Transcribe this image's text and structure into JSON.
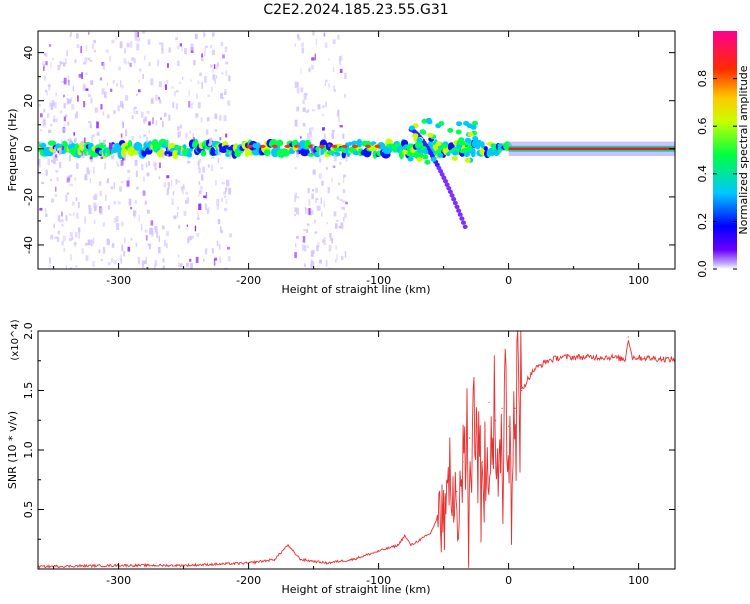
{
  "title": "C2E2.2024.185.23.55.G31",
  "chart_data": [
    {
      "type": "heatmap",
      "xlabel": "Height of straight line (km)",
      "ylabel": "Frequency (Hz)",
      "xlim": [
        -362,
        128
      ],
      "ylim": [
        -50,
        49
      ],
      "x_ticks": [
        -300,
        -200,
        -100,
        0,
        100
      ],
      "y_ticks": [
        -40,
        -20,
        0,
        20,
        40
      ],
      "colorbar": {
        "label": "Normalized spectral amplitude",
        "range": [
          0,
          1
        ],
        "ticks": [
          "0.0",
          "0.2",
          "0.4",
          "0.6",
          "0.8"
        ],
        "colormap": "hsv-rainbow (violet → blue → cyan → green → yellow → red → magenta)"
      },
      "features": [
        {
          "name": "dc-line",
          "x": [
            -362,
            128
          ],
          "freq": 0,
          "amp": 0.5
        },
        {
          "name": "noise-band-left",
          "x": [
            -362,
            -215
          ],
          "freq": [
            -50,
            49
          ],
          "amp": 0.05
        },
        {
          "name": "noise-band-middle",
          "x": [
            -165,
            -125
          ],
          "freq": [
            -50,
            49
          ],
          "amp": 0.05
        },
        {
          "name": "strong-line",
          "x": [
            0,
            128
          ],
          "freq": 0,
          "amp": 0.9
        },
        {
          "name": "descending-trace",
          "x": [
            -75,
            -33
          ],
          "freq": [
            8,
            -33
          ],
          "amp": 0.1
        }
      ]
    },
    {
      "type": "line",
      "xlabel": "Height of straight line (km)",
      "ylabel": "SNR (10 * v/v)",
      "y_multiplier": "(x10^4)",
      "xlim": [
        -362,
        128
      ],
      "ylim": [
        0,
        2.0
      ],
      "x_ticks": [
        -300,
        -200,
        -100,
        0,
        100
      ],
      "y_ticks": [
        "0.5",
        "1.0",
        "1.5",
        "2.0"
      ],
      "series": [
        {
          "color": "#e83030",
          "x": [
            -362,
            -300,
            -250,
            -200,
            -180,
            -170,
            -160,
            -140,
            -120,
            -100,
            -85,
            -80,
            -75,
            -60,
            -50,
            -45,
            -40,
            -35,
            -30,
            -25,
            -20,
            -15,
            -10,
            -5,
            0,
            5,
            10,
            15,
            20,
            30,
            40,
            60,
            80,
            90,
            92,
            95,
            110,
            128
          ],
          "y": [
            0.02,
            0.03,
            0.03,
            0.05,
            0.08,
            0.2,
            0.08,
            0.05,
            0.08,
            0.15,
            0.2,
            0.28,
            0.2,
            0.3,
            0.55,
            0.75,
            0.65,
            0.9,
            1.1,
            1.3,
            0.9,
            1.4,
            1.25,
            1.35,
            1.2,
            1.35,
            1.5,
            1.6,
            1.68,
            1.75,
            1.78,
            1.78,
            1.78,
            1.76,
            1.95,
            1.78,
            1.77,
            1.76
          ]
        }
      ]
    }
  ]
}
